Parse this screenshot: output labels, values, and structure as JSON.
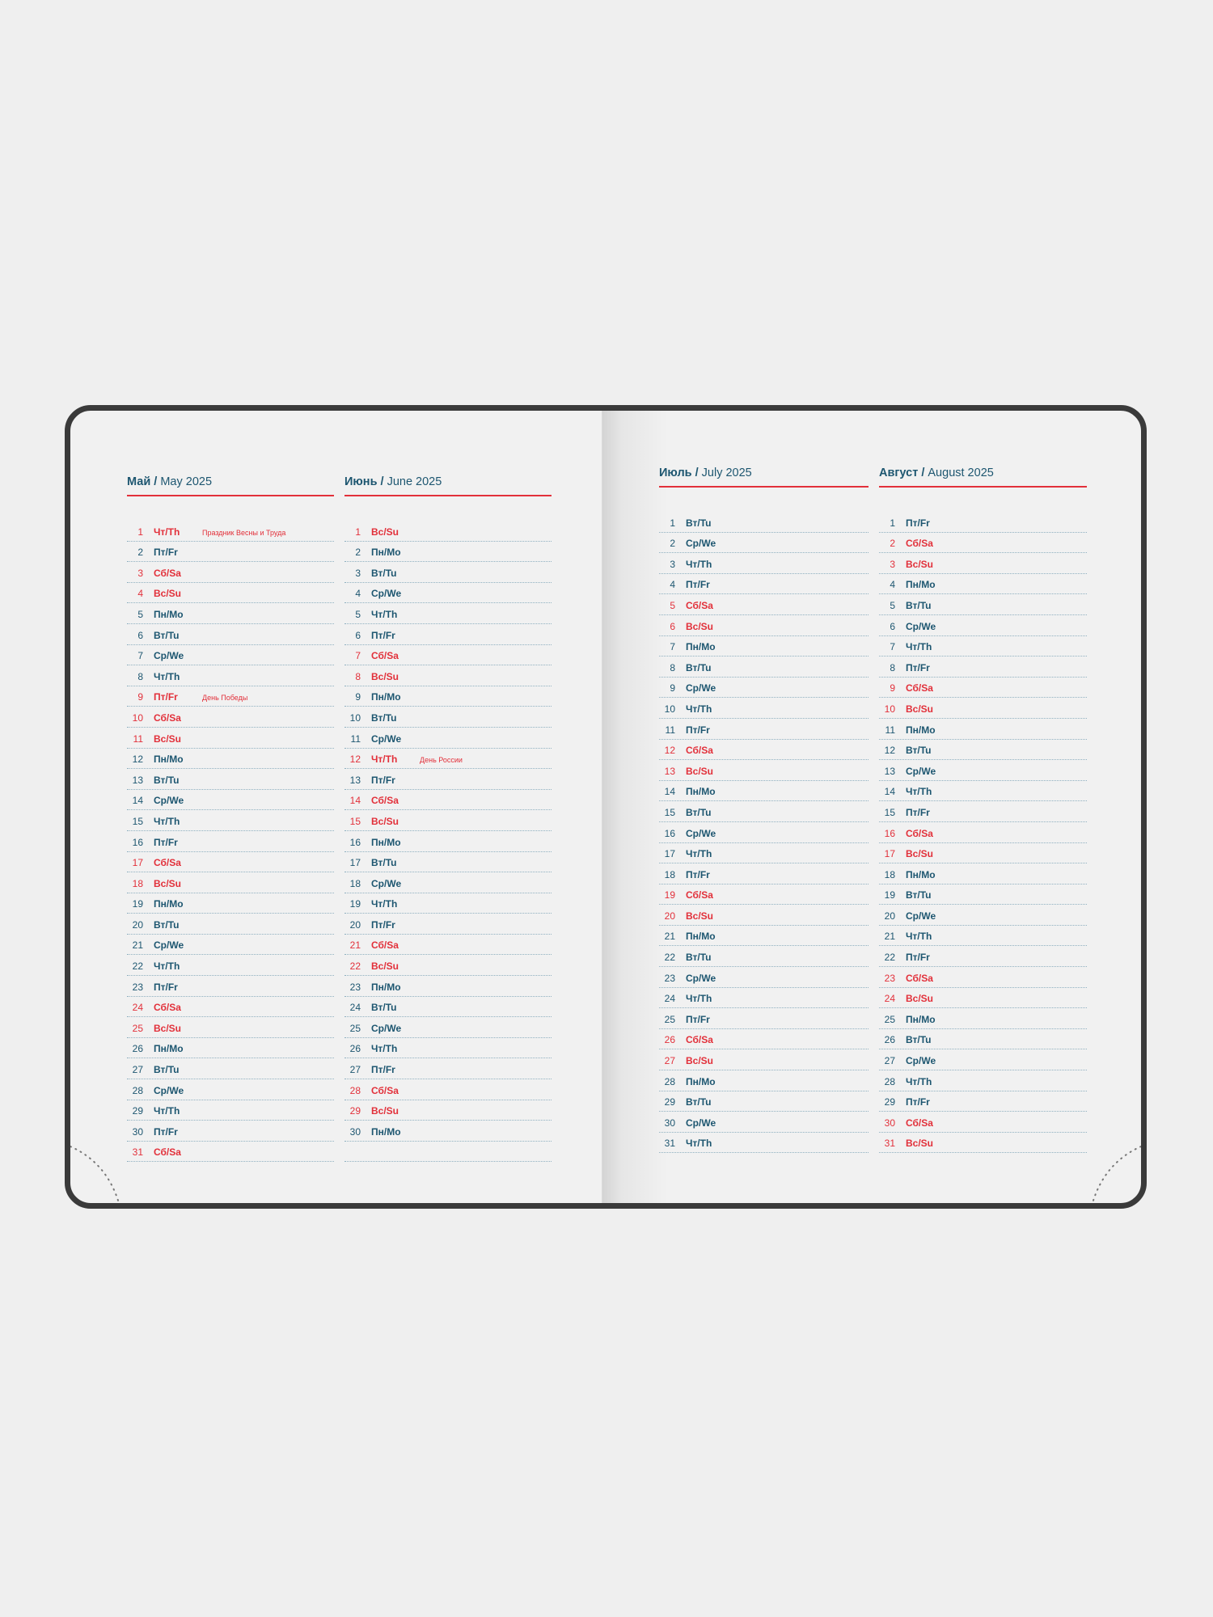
{
  "colors": {
    "accent_red": "#e2303a",
    "text_blue": "#1d5670",
    "cover": "#3a3a3a"
  },
  "months": [
    {
      "ru": "Май",
      "en": "May 2025",
      "rows": [
        [
          "1",
          "Чт/Th",
          1,
          "Праздник Весны и Труда"
        ],
        [
          "2",
          "Пт/Fr",
          0
        ],
        [
          "3",
          "Сб/Sa",
          1
        ],
        [
          "4",
          "Вс/Su",
          1
        ],
        [
          "5",
          "Пн/Mo",
          0
        ],
        [
          "6",
          "Вт/Tu",
          0
        ],
        [
          "7",
          "Ср/We",
          0
        ],
        [
          "8",
          "Чт/Th",
          0
        ],
        [
          "9",
          "Пт/Fr",
          1,
          "День Победы"
        ],
        [
          "10",
          "Сб/Sa",
          1
        ],
        [
          "11",
          "Вс/Su",
          1
        ],
        [
          "12",
          "Пн/Mo",
          0
        ],
        [
          "13",
          "Вт/Tu",
          0
        ],
        [
          "14",
          "Ср/We",
          0
        ],
        [
          "15",
          "Чт/Th",
          0
        ],
        [
          "16",
          "Пт/Fr",
          0
        ],
        [
          "17",
          "Сб/Sa",
          1
        ],
        [
          "18",
          "Вс/Su",
          1
        ],
        [
          "19",
          "Пн/Mo",
          0
        ],
        [
          "20",
          "Вт/Tu",
          0
        ],
        [
          "21",
          "Ср/We",
          0
        ],
        [
          "22",
          "Чт/Th",
          0
        ],
        [
          "23",
          "Пт/Fr",
          0
        ],
        [
          "24",
          "Сб/Sa",
          1
        ],
        [
          "25",
          "Вс/Su",
          1
        ],
        [
          "26",
          "Пн/Mo",
          0
        ],
        [
          "27",
          "Вт/Tu",
          0
        ],
        [
          "28",
          "Ср/We",
          0
        ],
        [
          "29",
          "Чт/Th",
          0
        ],
        [
          "30",
          "Пт/Fr",
          0
        ],
        [
          "31",
          "Сб/Sa",
          1
        ]
      ]
    },
    {
      "ru": "Июнь",
      "en": "June 2025",
      "rows": [
        [
          "1",
          "Вс/Su",
          1
        ],
        [
          "2",
          "Пн/Mo",
          0
        ],
        [
          "3",
          "Вт/Tu",
          0
        ],
        [
          "4",
          "Ср/We",
          0
        ],
        [
          "5",
          "Чт/Th",
          0
        ],
        [
          "6",
          "Пт/Fr",
          0
        ],
        [
          "7",
          "Сб/Sa",
          1
        ],
        [
          "8",
          "Вс/Su",
          1
        ],
        [
          "9",
          "Пн/Mo",
          0
        ],
        [
          "10",
          "Вт/Tu",
          0
        ],
        [
          "11",
          "Ср/We",
          0
        ],
        [
          "12",
          "Чт/Th",
          1,
          "День России"
        ],
        [
          "13",
          "Пт/Fr",
          0
        ],
        [
          "14",
          "Сб/Sa",
          1
        ],
        [
          "15",
          "Вс/Su",
          1
        ],
        [
          "16",
          "Пн/Mo",
          0
        ],
        [
          "17",
          "Вт/Tu",
          0
        ],
        [
          "18",
          "Ср/We",
          0
        ],
        [
          "19",
          "Чт/Th",
          0
        ],
        [
          "20",
          "Пт/Fr",
          0
        ],
        [
          "21",
          "Сб/Sa",
          1
        ],
        [
          "22",
          "Вс/Su",
          1
        ],
        [
          "23",
          "Пн/Mo",
          0
        ],
        [
          "24",
          "Вт/Tu",
          0
        ],
        [
          "25",
          "Ср/We",
          0
        ],
        [
          "26",
          "Чт/Th",
          0
        ],
        [
          "27",
          "Пт/Fr",
          0
        ],
        [
          "28",
          "Сб/Sa",
          1
        ],
        [
          "29",
          "Вс/Su",
          1
        ],
        [
          "30",
          "Пн/Mo",
          0
        ],
        [
          "",
          "",
          0
        ]
      ]
    },
    {
      "ru": "Июль",
      "en": "July 2025",
      "rows": [
        [
          "1",
          "Вт/Tu",
          0
        ],
        [
          "2",
          "Ср/We",
          0
        ],
        [
          "3",
          "Чт/Th",
          0
        ],
        [
          "4",
          "Пт/Fr",
          0
        ],
        [
          "5",
          "Сб/Sa",
          1
        ],
        [
          "6",
          "Вс/Su",
          1
        ],
        [
          "7",
          "Пн/Mo",
          0
        ],
        [
          "8",
          "Вт/Tu",
          0
        ],
        [
          "9",
          "Ср/We",
          0
        ],
        [
          "10",
          "Чт/Th",
          0
        ],
        [
          "11",
          "Пт/Fr",
          0
        ],
        [
          "12",
          "Сб/Sa",
          1
        ],
        [
          "13",
          "Вс/Su",
          1
        ],
        [
          "14",
          "Пн/Mo",
          0
        ],
        [
          "15",
          "Вт/Tu",
          0
        ],
        [
          "16",
          "Ср/We",
          0
        ],
        [
          "17",
          "Чт/Th",
          0
        ],
        [
          "18",
          "Пт/Fr",
          0
        ],
        [
          "19",
          "Сб/Sa",
          1
        ],
        [
          "20",
          "Вс/Su",
          1
        ],
        [
          "21",
          "Пн/Mo",
          0
        ],
        [
          "22",
          "Вт/Tu",
          0
        ],
        [
          "23",
          "Ср/We",
          0
        ],
        [
          "24",
          "Чт/Th",
          0
        ],
        [
          "25",
          "Пт/Fr",
          0
        ],
        [
          "26",
          "Сб/Sa",
          1
        ],
        [
          "27",
          "Вс/Su",
          1
        ],
        [
          "28",
          "Пн/Mo",
          0
        ],
        [
          "29",
          "Вт/Tu",
          0
        ],
        [
          "30",
          "Ср/We",
          0
        ],
        [
          "31",
          "Чт/Th",
          0
        ]
      ]
    },
    {
      "ru": "Август",
      "en": "August 2025",
      "rows": [
        [
          "1",
          "Пт/Fr",
          0
        ],
        [
          "2",
          "Сб/Sa",
          1
        ],
        [
          "3",
          "Вс/Su",
          1
        ],
        [
          "4",
          "Пн/Mo",
          0
        ],
        [
          "5",
          "Вт/Tu",
          0
        ],
        [
          "6",
          "Ср/We",
          0
        ],
        [
          "7",
          "Чт/Th",
          0
        ],
        [
          "8",
          "Пт/Fr",
          0
        ],
        [
          "9",
          "Сб/Sa",
          1
        ],
        [
          "10",
          "Вс/Su",
          1
        ],
        [
          "11",
          "Пн/Mo",
          0
        ],
        [
          "12",
          "Вт/Tu",
          0
        ],
        [
          "13",
          "Ср/We",
          0
        ],
        [
          "14",
          "Чт/Th",
          0
        ],
        [
          "15",
          "Пт/Fr",
          0
        ],
        [
          "16",
          "Сб/Sa",
          1
        ],
        [
          "17",
          "Вс/Su",
          1
        ],
        [
          "18",
          "Пн/Mo",
          0
        ],
        [
          "19",
          "Вт/Tu",
          0
        ],
        [
          "20",
          "Ср/We",
          0
        ],
        [
          "21",
          "Чт/Th",
          0
        ],
        [
          "22",
          "Пт/Fr",
          0
        ],
        [
          "23",
          "Сб/Sa",
          1
        ],
        [
          "24",
          "Вс/Su",
          1
        ],
        [
          "25",
          "Пн/Mo",
          0
        ],
        [
          "26",
          "Вт/Tu",
          0
        ],
        [
          "27",
          "Ср/We",
          0
        ],
        [
          "28",
          "Чт/Th",
          0
        ],
        [
          "29",
          "Пт/Fr",
          0
        ],
        [
          "30",
          "Сб/Sa",
          1
        ],
        [
          "31",
          "Вс/Su",
          1
        ]
      ]
    }
  ]
}
